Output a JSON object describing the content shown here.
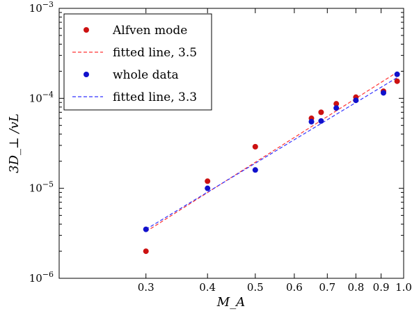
{
  "chart_data": {
    "type": "scatter",
    "title": "",
    "xlabel": "M_A",
    "ylabel": "3D_⊥ /vL",
    "x_scale": "log",
    "y_scale": "log",
    "xlim": [
      0.2,
      1.0
    ],
    "ylim": [
      1e-06,
      0.001
    ],
    "x_ticks": [
      {
        "value": 0.3,
        "label": "0.3"
      },
      {
        "value": 0.4,
        "label": "0.4"
      },
      {
        "value": 0.5,
        "label": "0.5"
      },
      {
        "value": 0.6,
        "label": "0.6"
      },
      {
        "value": 0.7,
        "label": "0.7"
      },
      {
        "value": 0.8,
        "label": "0.8"
      },
      {
        "value": 0.9,
        "label": "0.9"
      },
      {
        "value": 1.0,
        "label": "1.0"
      }
    ],
    "y_ticks": [
      {
        "value": 1e-06,
        "base": "10",
        "exp": "−6"
      },
      {
        "value": 1e-05,
        "base": "10",
        "exp": "−5"
      },
      {
        "value": 0.0001,
        "base": "10",
        "exp": "−4"
      },
      {
        "value": 0.001,
        "base": "10",
        "exp": "−3"
      }
    ],
    "grid": false,
    "legend_position": "top-left",
    "series": [
      {
        "name": "Alfven mode",
        "kind": "scatter",
        "color": "#cc1111",
        "x": [
          0.3,
          0.4,
          0.5,
          0.65,
          0.68,
          0.73,
          0.8,
          0.91,
          0.97
        ],
        "y": [
          2e-06,
          1.2e-05,
          2.9e-05,
          6e-05,
          7e-05,
          8.7e-05,
          0.000103,
          0.00012,
          0.000155
        ]
      },
      {
        "name": "fitted line, 3.5",
        "kind": "line",
        "style": "dashed",
        "color": "#ff3333",
        "x": [
          0.3,
          0.97
        ],
        "y": [
          3.3e-06,
          0.000195
        ]
      },
      {
        "name": "whole data",
        "kind": "scatter",
        "color": "#1111cc",
        "x": [
          0.3,
          0.4,
          0.5,
          0.65,
          0.68,
          0.73,
          0.8,
          0.91,
          0.97
        ],
        "y": [
          3.5e-06,
          1e-05,
          1.6e-05,
          5.5e-05,
          5.6e-05,
          7.8e-05,
          9.5e-05,
          0.000115,
          0.000185
        ]
      },
      {
        "name": "fitted line, 3.3",
        "kind": "line",
        "style": "dashed",
        "color": "#3333ff",
        "x": [
          0.3,
          0.97
        ],
        "y": [
          3.5e-06,
          0.00017
        ]
      }
    ]
  }
}
